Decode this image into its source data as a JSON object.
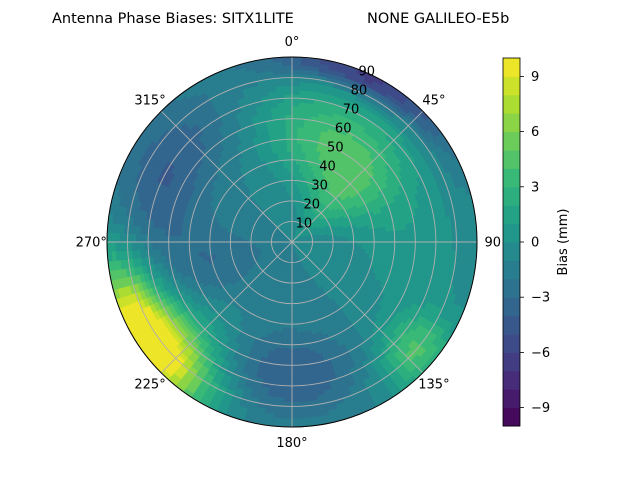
{
  "chart_data": {
    "type": "heatmap",
    "projection": "polar",
    "title": "Antenna Phase Biases: SITX1LITE",
    "subtitle": "NONE GALILEO-E5b",
    "angular_axis": {
      "zero_location": "N",
      "direction": "clockwise",
      "tick_labels": [
        "0°",
        "45°",
        "90",
        "135°",
        "180°",
        "225°",
        "270°",
        "315°"
      ],
      "ticks_deg": [
        0,
        45,
        90,
        135,
        180,
        225,
        270,
        315
      ]
    },
    "radial_axis": {
      "range": [
        0,
        90
      ],
      "tick_labels": [
        "10",
        "20",
        "30",
        "40",
        "50",
        "60",
        "70",
        "80",
        "90"
      ],
      "ticks": [
        10,
        20,
        30,
        40,
        50,
        60,
        70,
        80,
        90
      ]
    },
    "grid": true,
    "colorbar": {
      "label": "Bias (mm)",
      "colormap": "viridis",
      "range": [
        -10,
        10
      ],
      "tick_labels": [
        "9",
        "6",
        "3",
        "0",
        "−3",
        "−6",
        "−9"
      ],
      "ticks": [
        9,
        6,
        3,
        0,
        -3,
        -6,
        -9
      ],
      "levels": 20
    },
    "field_features": [
      {
        "az": 238,
        "zen": 85,
        "width_az": 18,
        "width_zen": 12,
        "value": 12.0
      },
      {
        "az": 228,
        "zen": 70,
        "width_az": 14,
        "width_zen": 16,
        "value": 3.5
      },
      {
        "az": 45,
        "zen": 40,
        "width_az": 22,
        "width_zen": 22,
        "value": 5.0
      },
      {
        "az": 10,
        "zen": 55,
        "width_az": 22,
        "width_zen": 18,
        "value": 3.5
      },
      {
        "az": 132,
        "zen": 80,
        "width_az": 10,
        "width_zen": 12,
        "value": 5.0
      },
      {
        "az": 25,
        "zen": 88,
        "width_az": 22,
        "width_zen": 6,
        "value": -6.0
      },
      {
        "az": 300,
        "zen": 70,
        "width_az": 25,
        "width_zen": 15,
        "value": -3.0
      },
      {
        "az": 180,
        "zen": 65,
        "width_az": 20,
        "width_zen": 15,
        "value": -3.0
      },
      {
        "az": 255,
        "zen": 40,
        "width_az": 22,
        "width_zen": 20,
        "value": -2.0
      },
      {
        "az": 100,
        "zen": 60,
        "width_az": 22,
        "width_zen": 20,
        "value": 1.5
      }
    ],
    "base_value": -1.0
  },
  "colors": {
    "grid": "#b0b0b0",
    "frame": "#000000"
  }
}
